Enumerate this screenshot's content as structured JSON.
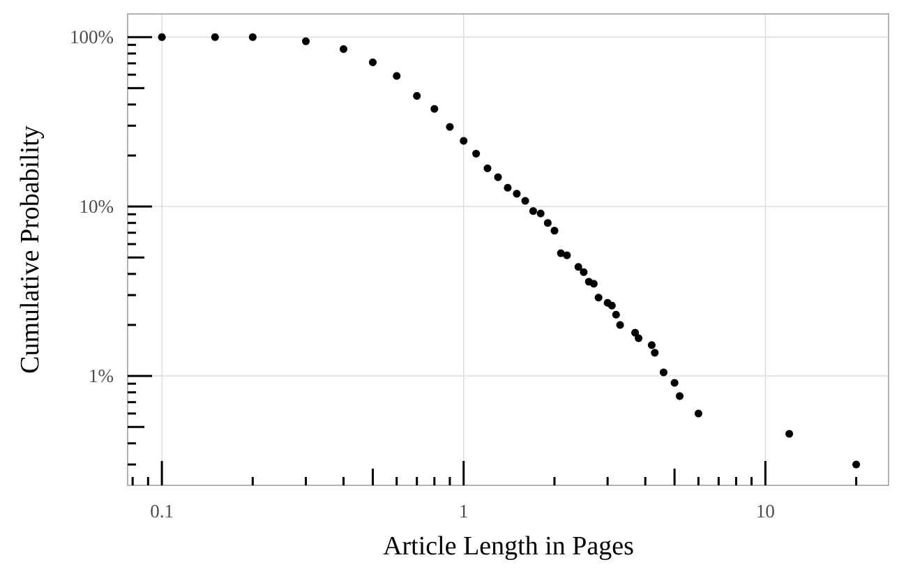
{
  "chart_data": {
    "type": "scatter",
    "x_label": "Article Length in Pages",
    "y_label": "Cumulative Probability",
    "x": [
      0.1,
      0.15,
      0.2,
      0.3,
      0.4,
      0.5,
      0.6,
      0.7,
      0.8,
      0.9,
      1.0,
      1.1,
      1.2,
      1.3,
      1.4,
      1.5,
      1.6,
      1.7,
      1.8,
      1.9,
      2.0,
      2.1,
      2.2,
      2.4,
      2.5,
      2.6,
      2.7,
      2.8,
      3.0,
      3.1,
      3.2,
      3.3,
      3.7,
      3.8,
      4.2,
      4.3,
      4.6,
      5.0,
      5.2,
      6.0,
      12,
      20
    ],
    "values": [
      100,
      100,
      100,
      94.5,
      85,
      71,
      59,
      45,
      37.7,
      29.5,
      24.4,
      20.5,
      16.8,
      14.9,
      12.9,
      11.9,
      10.8,
      9.4,
      9.1,
      8.0,
      7.2,
      5.3,
      5.15,
      4.4,
      4.1,
      3.6,
      3.5,
      2.9,
      2.7,
      2.6,
      2.3,
      2.0,
      1.8,
      1.67,
      1.52,
      1.37,
      1.05,
      0.91,
      0.76,
      0.6,
      0.455,
      0.3
    ],
    "color": "#000000",
    "xlog": true,
    "ylog": true,
    "grid": true,
    "xlim": [
      0.077,
      25.6
    ],
    "ylim": [
      0.226,
      137
    ],
    "xticks": [
      0.1,
      1,
      10
    ],
    "yticks": [
      {
        "value": 1,
        "label": "1%"
      },
      {
        "value": 10,
        "label": "10%"
      },
      {
        "value": 100,
        "label": "100%"
      }
    ],
    "xminorticks": [
      0.08,
      0.09,
      0.1,
      0.2,
      0.3,
      0.4,
      0.5,
      0.6,
      0.7,
      0.8,
      0.9,
      1,
      2,
      3,
      4,
      5,
      6,
      7,
      8,
      9,
      10,
      20
    ],
    "yminorticks": [
      0.3,
      0.4,
      0.5,
      0.6,
      0.7,
      0.8,
      0.9,
      1,
      2,
      3,
      4,
      5,
      6,
      7,
      8,
      9,
      10,
      20,
      30,
      40,
      50,
      60,
      70,
      80,
      90,
      100
    ]
  }
}
